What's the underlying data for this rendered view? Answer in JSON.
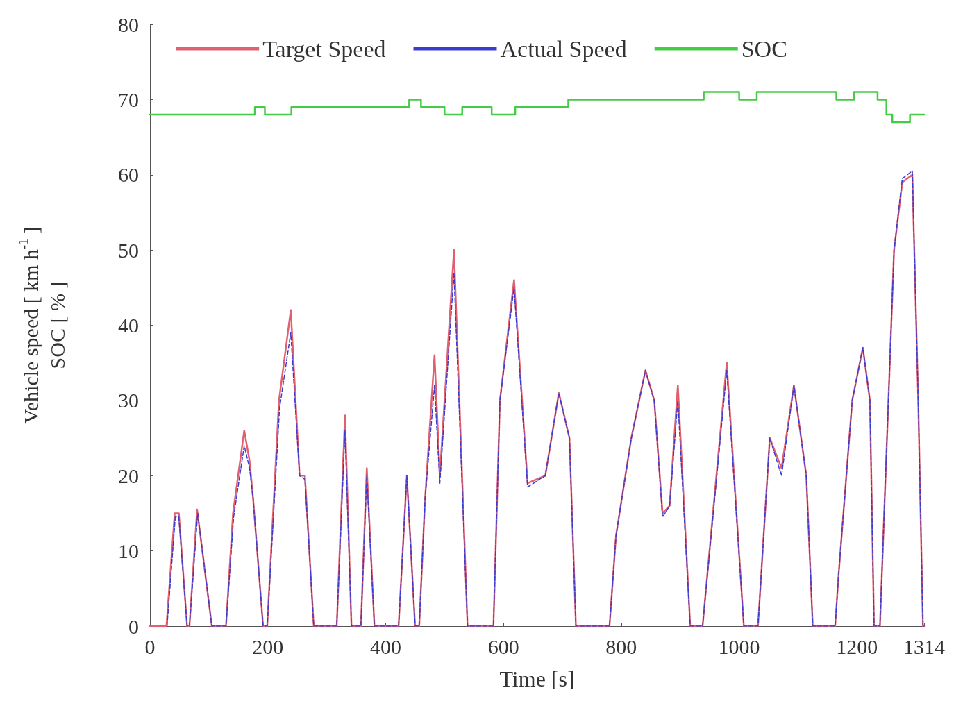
{
  "chart_data": {
    "type": "line",
    "xlabel": "Time [s]",
    "ylabel": "Vehicle speed [ km h$^{-1}$ ]\nSOC [ % ]",
    "xlim": [
      0,
      1314
    ],
    "xticks": [
      0,
      200,
      400,
      600,
      800,
      1000,
      1200,
      1314
    ],
    "ylim": [
      0,
      80
    ],
    "yticks": [
      0,
      10,
      20,
      30,
      40,
      50,
      60,
      70,
      80
    ],
    "grid": false,
    "legend": "top",
    "marker": "none",
    "series": [
      {
        "name": "Target Speed",
        "color": "#e06070",
        "line_style": "solid",
        "x": [
          0,
          28,
          42,
          49,
          63,
          67,
          80,
          105,
          129,
          141,
          160,
          169,
          175,
          192,
          199,
          219,
          239,
          254,
          263,
          278,
          317,
          331,
          342,
          358,
          368,
          381,
          422,
          436,
          450,
          457,
          467,
          483,
          492,
          516,
          539,
          583,
          594,
          618,
          641,
          671,
          694,
          712,
          723,
          780,
          791,
          817,
          841,
          856,
          870,
          882,
          896,
          917,
          938,
          979,
          1008,
          1032,
          1052,
          1072,
          1093,
          1114,
          1125,
          1163,
          1169,
          1192,
          1210,
          1222,
          1229,
          1239,
          1263,
          1277,
          1294,
          1304,
          1312,
          1314
        ],
        "values": [
          0,
          0,
          15,
          15,
          0,
          0,
          15.5,
          0,
          0,
          15,
          26,
          22,
          17,
          0,
          0,
          30,
          42,
          20,
          20,
          0,
          0,
          28,
          0,
          0,
          21,
          0,
          0,
          20,
          0,
          0,
          17,
          36,
          20,
          50,
          0,
          0,
          30,
          46,
          19,
          20,
          31,
          25,
          0,
          0,
          12,
          25,
          34,
          30,
          15,
          16,
          32,
          0,
          0,
          35,
          0,
          0,
          25,
          21,
          32,
          20,
          0,
          0,
          7,
          30,
          37,
          30,
          0,
          0,
          50,
          59,
          60,
          30,
          0,
          0
        ]
      },
      {
        "name": "Actual Speed",
        "color": "#3b3bd0",
        "line_style": "dashed",
        "x": [
          29,
          43,
          49,
          63,
          67,
          81,
          105,
          129,
          142,
          160,
          169,
          175,
          192,
          199,
          220,
          239,
          254,
          263,
          278,
          317,
          331,
          342,
          358,
          368,
          381,
          422,
          436,
          450,
          457,
          467,
          483,
          492,
          516,
          539,
          583,
          594,
          618,
          641,
          671,
          694,
          712,
          723,
          780,
          791,
          817,
          841,
          856,
          870,
          882,
          896,
          917,
          938,
          979,
          1008,
          1032,
          1052,
          1072,
          1093,
          1114,
          1125,
          1163,
          1169,
          1192,
          1210,
          1222,
          1229,
          1239,
          1263,
          1277,
          1294,
          1304,
          1312,
          1314
        ],
        "values": [
          0,
          14.5,
          14.5,
          0,
          0,
          15,
          0,
          0,
          14.5,
          24,
          21,
          17,
          0,
          0,
          29,
          39,
          20,
          19.5,
          0,
          0,
          26,
          0,
          0,
          20,
          0,
          0,
          20,
          0,
          0,
          17,
          32,
          19,
          47,
          0,
          0,
          30,
          45,
          18.5,
          20,
          31,
          25,
          0,
          0,
          12,
          25,
          34,
          30,
          14.5,
          16,
          30,
          0,
          0,
          34,
          0,
          0,
          25,
          20,
          32,
          20,
          0,
          0,
          7,
          30,
          37,
          30,
          0,
          0,
          50,
          59.5,
          60.5,
          30,
          0,
          0
        ]
      },
      {
        "name": "SOC",
        "type": "step",
        "color": "#44cc44",
        "line_style": "solid",
        "x": [
          0,
          178,
          195,
          240,
          440,
          460,
          500,
          530,
          580,
          620,
          710,
          940,
          1000,
          1030,
          1080,
          1165,
          1195,
          1235,
          1250,
          1260,
          1290,
          1314
        ],
        "values": [
          68,
          69,
          68,
          69,
          70,
          69,
          68,
          69,
          68,
          69,
          70,
          71,
          70,
          71,
          71,
          70,
          71,
          70,
          68,
          67,
          68,
          68
        ]
      }
    ]
  }
}
